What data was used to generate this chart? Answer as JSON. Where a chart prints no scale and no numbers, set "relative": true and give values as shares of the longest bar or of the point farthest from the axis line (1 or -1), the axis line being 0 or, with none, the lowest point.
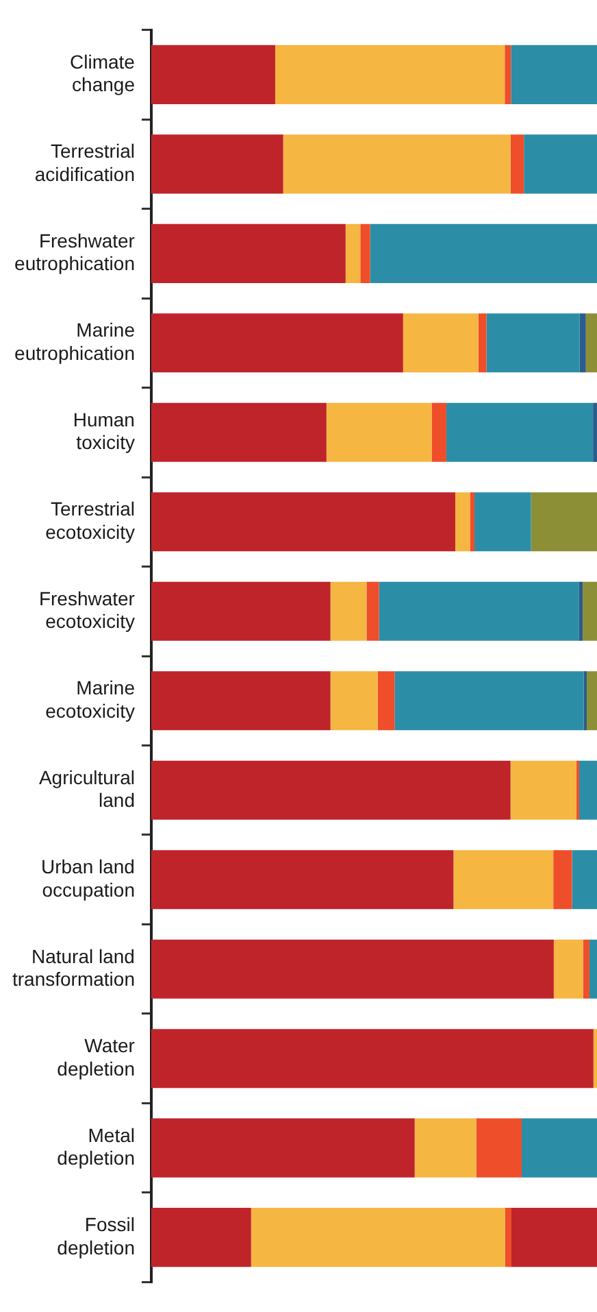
{
  "chart_data": {
    "type": "bar",
    "orientation": "horizontal",
    "stacked": true,
    "relative": true,
    "legend": false,
    "categories": [
      "Climate change",
      "Terrestrial acidification",
      "Freshwater eutrophication",
      "Marine eutrophication",
      "Human toxicity",
      "Terrestrial ecotoxicity",
      "Freshwater ecotoxicity",
      "Marine ecotoxicity",
      "Agricultural land",
      "Urban land occupation",
      "Natural land transformation",
      "Water depletion",
      "Metal depletion",
      "Fossil depletion"
    ],
    "series": [
      {
        "color": "#bf242b",
        "values": [
          0.278,
          0.296,
          0.436,
          0.565,
          0.393,
          0.682,
          0.402,
          0.402,
          0.806,
          0.678,
          0.903,
          0.992,
          0.591,
          0.224
        ]
      },
      {
        "color": "#f5b642",
        "values": [
          0.515,
          0.51,
          0.033,
          0.169,
          0.236,
          0.033,
          0.081,
          0.106,
          0.148,
          0.224,
          0.066,
          0.008,
          0.138,
          0.57
        ]
      },
      {
        "color": "#ee4e2a",
        "values": [
          0.014,
          0.03,
          0.022,
          0.018,
          0.033,
          0.01,
          0.028,
          0.038,
          0.006,
          0.042,
          0.014,
          null,
          0.102,
          0.014
        ]
      },
      {
        "color": "#2b8ea6",
        "colors": [
          null,
          null,
          null,
          null,
          null,
          null,
          null,
          null,
          null,
          null,
          null,
          null,
          null,
          "#bf242b"
        ],
        "values": [
          0.193,
          0.164,
          0.509,
          0.209,
          0.329,
          0.127,
          0.448,
          0.424,
          0.04,
          0.056,
          0.017,
          null,
          0.169,
          0.192
        ]
      },
      {
        "color": "#2c5c8a",
        "values": [
          null,
          null,
          null,
          0.014,
          0.009,
          null,
          0.009,
          0.007,
          null,
          null,
          null,
          null,
          null,
          null
        ]
      },
      {
        "color": "#8c8f35",
        "values": [
          null,
          null,
          null,
          0.025,
          null,
          0.148,
          0.032,
          0.023,
          null,
          null,
          null,
          null,
          null,
          null
        ]
      }
    ]
  }
}
